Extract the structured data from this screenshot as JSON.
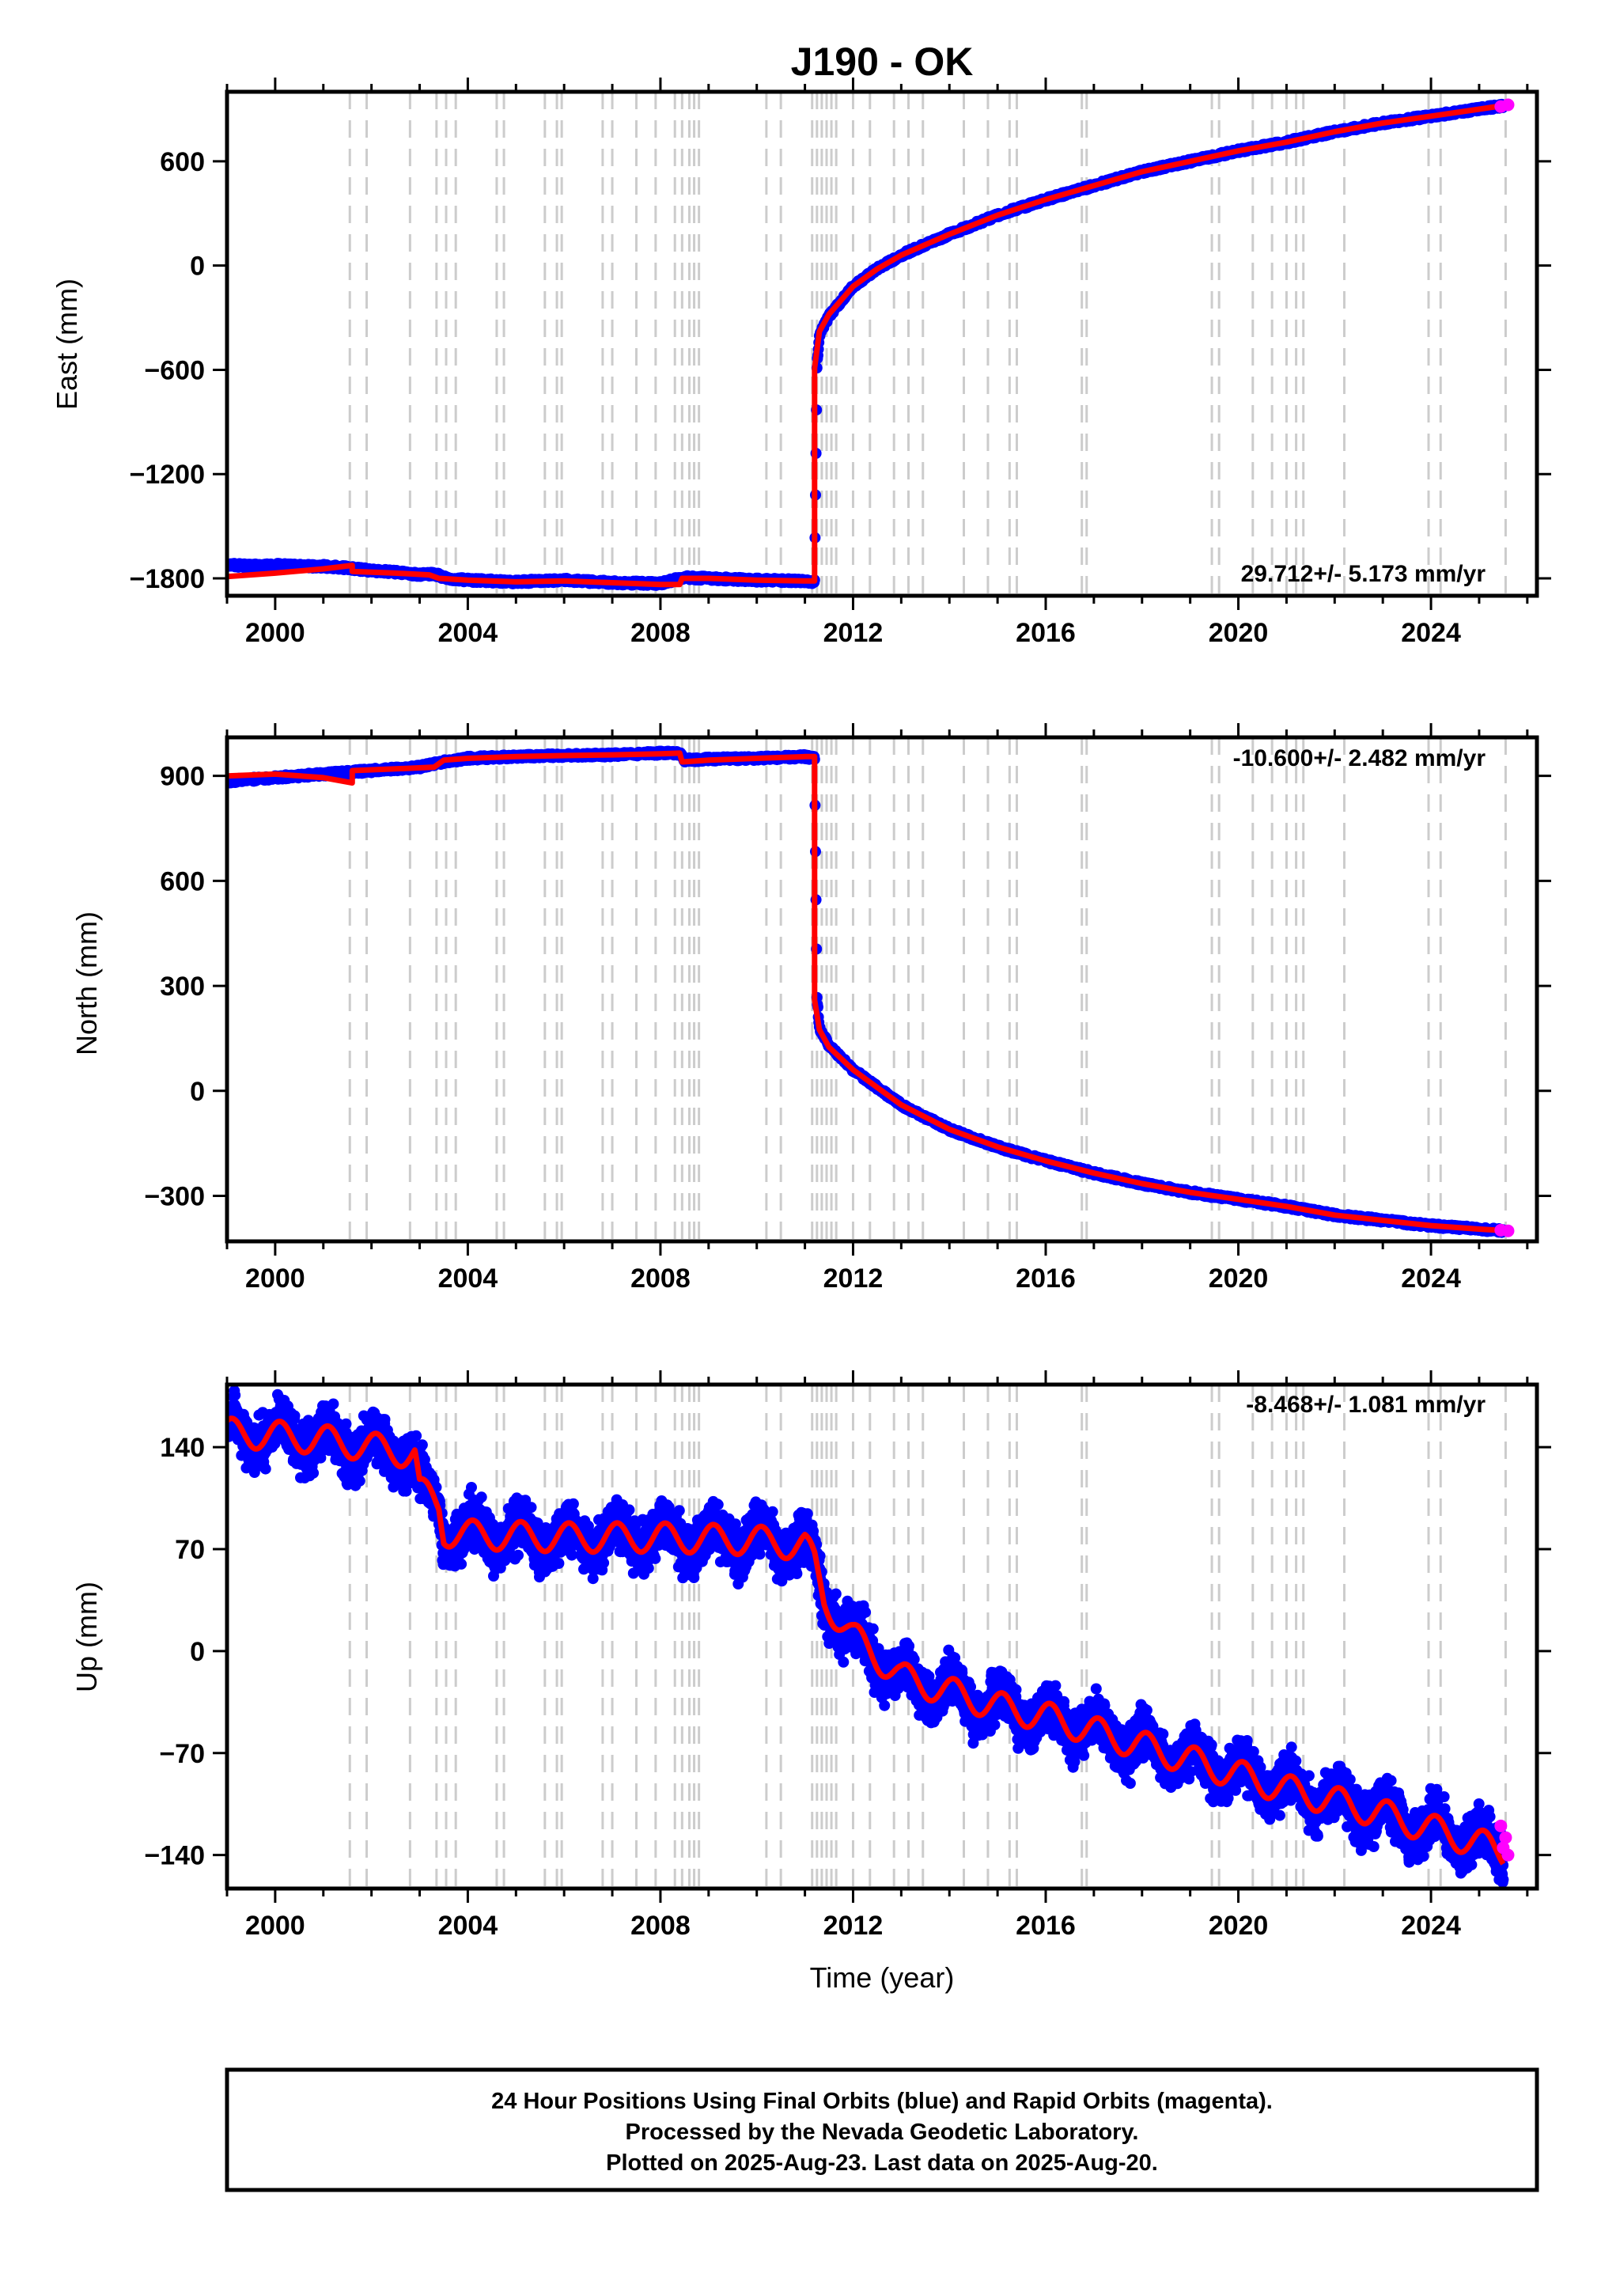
{
  "chart_data": [
    {
      "type": "scatter",
      "title": "J190 - OK",
      "ylabel": "East (mm)",
      "xlabel": "",
      "xlim": [
        1999,
        2026.2
      ],
      "ylim": [
        -1900,
        1000
      ],
      "yticks": [
        -1800,
        -1200,
        -600,
        0,
        600
      ],
      "xticks": [
        2000,
        2004,
        2008,
        2012,
        2016,
        2020,
        2024
      ],
      "annotation": "29.712+/- 5.173 mm/yr",
      "annotation_position": "bottom-right",
      "series": [
        {
          "role": "final-orbits",
          "color": "#0000ff",
          "x": [
            1999.0,
            1999.5,
            2000.0,
            2000.5,
            2001.0,
            2001.5,
            2002.0,
            2002.5,
            2003.0,
            2003.3,
            2003.6,
            2004.0,
            2005.0,
            2006.0,
            2007.0,
            2008.0,
            2008.5,
            2009.0,
            2010.0,
            2011.0,
            2011.2,
            2011.25,
            2011.3,
            2011.5,
            2012.0,
            2012.5,
            2013.0,
            2014.0,
            2015.0,
            2016.0,
            2017.0,
            2018.0,
            2019.0,
            2020.0,
            2021.0,
            2022.0,
            2023.0,
            2024.0,
            2025.0,
            2025.5
          ],
          "y": [
            -1720,
            -1730,
            -1725,
            -1730,
            -1730,
            -1740,
            -1755,
            -1765,
            -1780,
            -1775,
            -1800,
            -1810,
            -1820,
            -1810,
            -1825,
            -1830,
            -1795,
            -1800,
            -1810,
            -1815,
            -1820,
            -580,
            -400,
            -290,
            -120,
            -20,
            60,
            180,
            290,
            380,
            460,
            540,
            600,
            660,
            710,
            770,
            820,
            860,
            900,
            920
          ]
        }
      ],
      "model": {
        "color": "#ff0000",
        "x": [
          1999.0,
          2000.0,
          2001.0,
          2001.6,
          2001.6,
          2002.5,
          2003.2,
          2003.4,
          2004.0,
          2005.0,
          2006.0,
          2007.0,
          2008.0,
          2008.4,
          2008.45,
          2009.0,
          2010.0,
          2011.0,
          2011.2,
          2011.2,
          2011.3,
          2011.5,
          2012.0,
          2012.5,
          2013.0,
          2014.0,
          2015.0,
          2016.0,
          2017.0,
          2018.0,
          2019.0,
          2020.0,
          2021.0,
          2022.0,
          2023.0,
          2024.0,
          2025.0,
          2025.6
        ],
        "y": [
          -1790,
          -1770,
          -1745,
          -1725,
          -1760,
          -1770,
          -1780,
          -1800,
          -1810,
          -1820,
          -1815,
          -1825,
          -1835,
          -1835,
          -1800,
          -1800,
          -1810,
          -1815,
          -1815,
          -590,
          -380,
          -280,
          -120,
          -20,
          60,
          180,
          290,
          380,
          460,
          540,
          600,
          660,
          710,
          770,
          820,
          860,
          900,
          925
        ]
      },
      "rapid_end": {
        "color": "#ff00ff",
        "x": [
          2025.45,
          2025.6
        ],
        "y": [
          915,
          925
        ]
      }
    },
    {
      "type": "scatter",
      "title": "",
      "ylabel": "North (mm)",
      "xlabel": "",
      "xlim": [
        1999,
        2026.2
      ],
      "ylim": [
        -430,
        1010
      ],
      "yticks": [
        -300,
        0,
        300,
        600,
        900
      ],
      "xticks": [
        2000,
        2004,
        2008,
        2012,
        2016,
        2020,
        2024
      ],
      "annotation": "-10.600+/- 2.482 mm/yr",
      "annotation_position": "top-right",
      "series": [
        {
          "role": "final-orbits",
          "color": "#0000ff",
          "x": [
            1999.0,
            1999.5,
            2000.0,
            2000.5,
            2001.0,
            2001.5,
            2002.0,
            2003.0,
            2003.5,
            2004.0,
            2005.0,
            2006.0,
            2007.0,
            2008.0,
            2008.4,
            2008.5,
            2009.0,
            2010.0,
            2011.0,
            2011.2,
            2011.25,
            2011.3,
            2011.5,
            2012.0,
            2012.5,
            2013.0,
            2014.0,
            2015.0,
            2016.0,
            2017.0,
            2018.0,
            2019.0,
            2020.0,
            2021.0,
            2022.0,
            2023.0,
            2024.0,
            2025.0,
            2025.5
          ],
          "y": [
            885,
            890,
            895,
            900,
            905,
            910,
            915,
            925,
            940,
            950,
            955,
            958,
            960,
            965,
            965,
            945,
            948,
            950,
            955,
            950,
            270,
            180,
            130,
            60,
            10,
            -40,
            -110,
            -160,
            -200,
            -235,
            -265,
            -290,
            -310,
            -330,
            -355,
            -370,
            -385,
            -395,
            -400
          ]
        }
      ],
      "model": {
        "color": "#ff0000",
        "x": [
          1999.0,
          2000.0,
          2001.0,
          2001.6,
          2001.6,
          2002.5,
          2003.3,
          2003.5,
          2004.0,
          2005.0,
          2006.0,
          2007.0,
          2008.0,
          2008.4,
          2008.45,
          2009.0,
          2010.0,
          2011.0,
          2011.2,
          2011.2,
          2011.3,
          2011.5,
          2012.0,
          2012.5,
          2013.0,
          2014.0,
          2015.0,
          2016.0,
          2017.0,
          2018.0,
          2019.0,
          2020.0,
          2021.0,
          2022.0,
          2023.0,
          2024.0,
          2025.0,
          2025.6
        ],
        "y": [
          900,
          905,
          895,
          880,
          915,
          920,
          925,
          945,
          950,
          955,
          958,
          960,
          963,
          965,
          940,
          945,
          950,
          955,
          955,
          260,
          175,
          125,
          60,
          10,
          -40,
          -110,
          -160,
          -200,
          -235,
          -265,
          -290,
          -310,
          -330,
          -355,
          -370,
          -385,
          -395,
          -400
        ]
      },
      "rapid_end": {
        "color": "#ff00ff",
        "x": [
          2025.45,
          2025.6
        ],
        "y": [
          -398,
          -400
        ]
      }
    },
    {
      "type": "scatter",
      "title": "",
      "ylabel": "Up (mm)",
      "xlabel": "Time (year)",
      "xlim": [
        1999,
        2026.2
      ],
      "ylim": [
        -163,
        183
      ],
      "yticks": [
        -140,
        -70,
        0,
        70,
        140
      ],
      "xticks": [
        2000,
        2004,
        2008,
        2012,
        2016,
        2020,
        2024
      ],
      "annotation": "-8.468+/- 1.081 mm/yr",
      "annotation_position": "top-right",
      "series": [
        {
          "role": "final-orbits",
          "color": "#0000ff",
          "scatter_sd": 8,
          "x": [
            1999.0,
            2000.0,
            2001.0,
            2002.0,
            2002.9,
            2003.0,
            2003.4,
            2003.5,
            2004.0,
            2006.0,
            2008.0,
            2010.0,
            2011.0,
            2011.2,
            2011.4,
            2012.0,
            2013.0,
            2014.0,
            2015.0,
            2016.0,
            2017.0,
            2018.0,
            2019.0,
            2020.0,
            2021.0,
            2022.0,
            2023.0,
            2024.0,
            2025.0,
            2025.5
          ],
          "y": [
            150,
            148,
            145,
            140,
            135,
            110,
            100,
            82,
            80,
            78,
            78,
            76,
            72,
            60,
            35,
            10,
            -18,
            -28,
            -38,
            -45,
            -55,
            -65,
            -75,
            -85,
            -95,
            -103,
            -112,
            -122,
            -132,
            -138
          ]
        }
      ],
      "model": {
        "color": "#ff0000",
        "seasonal_amplitude": 10,
        "x": [
          1999.0,
          2000.0,
          2001.0,
          2002.0,
          2002.9,
          2003.0,
          2003.4,
          2003.5,
          2004.0,
          2006.0,
          2008.0,
          2010.0,
          2011.0,
          2011.2,
          2011.4,
          2012.0,
          2013.0,
          2014.0,
          2015.0,
          2016.0,
          2017.0,
          2018.0,
          2019.0,
          2020.0,
          2021.0,
          2022.0,
          2023.0,
          2024.0,
          2025.0,
          2025.5
        ],
        "y": [
          150,
          148,
          145,
          140,
          135,
          110,
          100,
          82,
          80,
          78,
          78,
          76,
          72,
          60,
          35,
          10,
          -18,
          -28,
          -38,
          -45,
          -55,
          -65,
          -75,
          -85,
          -95,
          -103,
          -112,
          -122,
          -132,
          -138
        ]
      },
      "rapid_end": {
        "color": "#ff00ff",
        "x": [
          2025.45,
          2025.5,
          2025.55,
          2025.6
        ],
        "y": [
          -120,
          -135,
          -128,
          -140
        ]
      }
    }
  ],
  "event_lines": {
    "color": "#cccccc",
    "years": [
      2001.55,
      2001.9,
      2002.8,
      2003.35,
      2003.55,
      2003.75,
      2004.6,
      2004.75,
      2005.6,
      2005.85,
      2005.95,
      2006.8,
      2007.0,
      2007.5,
      2007.9,
      2008.3,
      2008.45,
      2008.6,
      2008.7,
      2008.8,
      2010.2,
      2010.5,
      2011.15,
      2011.25,
      2011.35,
      2011.45,
      2011.55,
      2011.65,
      2012.0,
      2012.35,
      2012.85,
      2013.15,
      2013.45,
      2014.3,
      2014.8,
      2015.25,
      2015.4,
      2016.75,
      2016.85,
      2019.45,
      2019.6,
      2020.3,
      2020.7,
      2021.0,
      2021.2,
      2021.35,
      2022.2,
      2023.95,
      2024.2,
      2025.55
    ]
  },
  "footer": {
    "line1": "24 Hour Positions Using Final Orbits (blue) and Rapid Orbits (magenta).",
    "line2": "Processed by the Nevada Geodetic Laboratory.",
    "line3": "Plotted on 2025-Aug-23. Last data on 2025-Aug-20."
  }
}
